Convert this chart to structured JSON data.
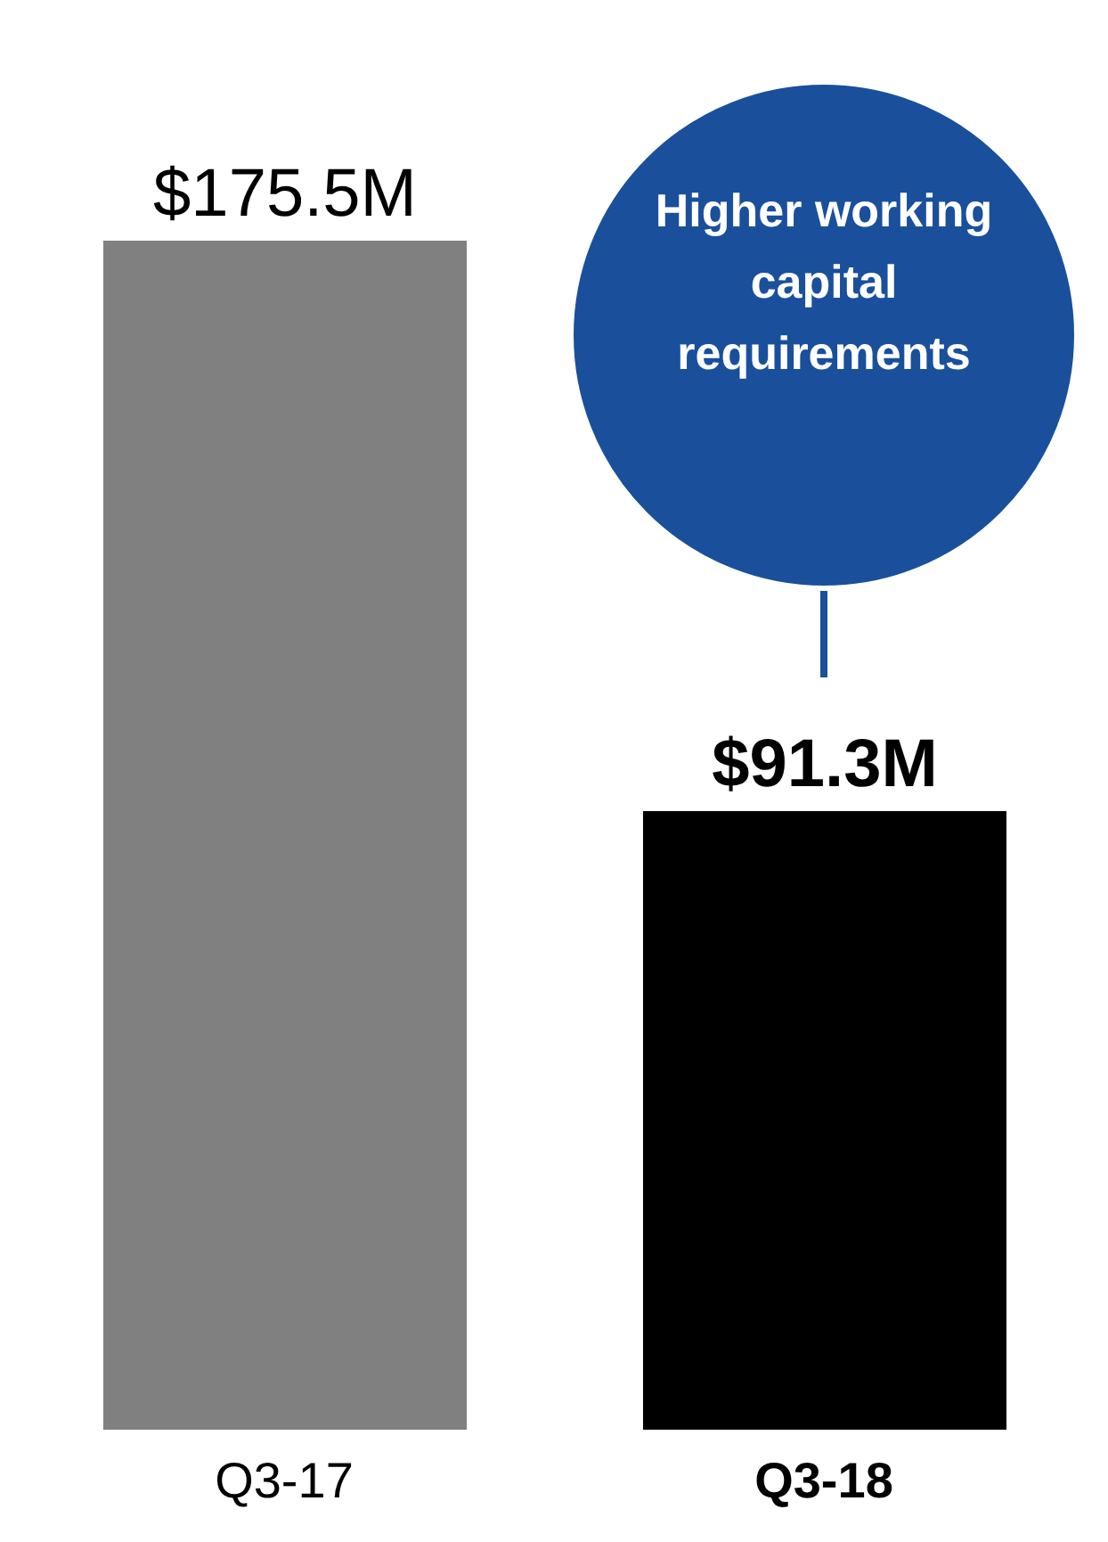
{
  "chart_data": {
    "type": "bar",
    "categories": [
      "Q3-17",
      "Q3-18"
    ],
    "values": [
      175.5,
      91.3
    ],
    "colors": [
      "#808080",
      "#000000"
    ],
    "value_labels": [
      "$175.5M",
      "$91.3M"
    ],
    "annotations": [
      "Higher working capital requirements"
    ],
    "grid": false,
    "legend": false
  }
}
